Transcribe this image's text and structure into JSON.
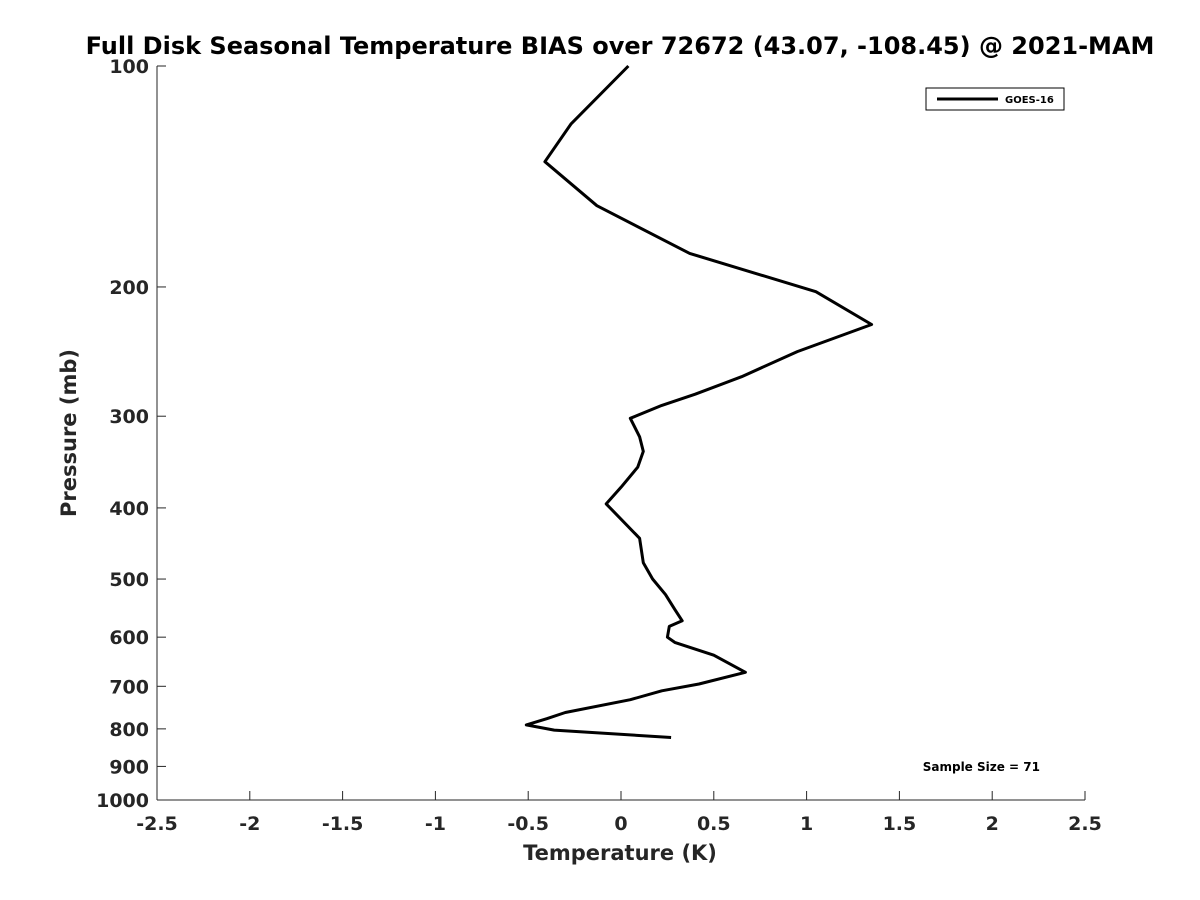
{
  "chart_data": {
    "type": "line",
    "title": "Full Disk Seasonal Temperature BIAS over 72672 (43.07, -108.45) @ 2021-MAM",
    "xlabel": "Temperature (K)",
    "ylabel": "Pressure (mb)",
    "xlim": [
      -2.5,
      2.5
    ],
    "ylim": [
      100,
      1000
    ],
    "yscale": "log",
    "yreversed": true,
    "grid": false,
    "legend_placement": "top-right",
    "xticks": [
      -2.5,
      -2,
      -1.5,
      -1,
      -0.5,
      0,
      0.5,
      1,
      1.5,
      2,
      2.5
    ],
    "xtick_labels": [
      "-2.5",
      "-2",
      "-1.5",
      "-1",
      "-0.5",
      "0",
      "0.5",
      "1",
      "1.5",
      "2",
      "2.5"
    ],
    "yticks": [
      100,
      200,
      300,
      400,
      500,
      600,
      700,
      800,
      900,
      1000
    ],
    "ytick_labels": [
      "100",
      "200",
      "300",
      "400",
      "500",
      "600",
      "700",
      "800",
      "900",
      "1000"
    ],
    "series": [
      {
        "name": "GOES-16",
        "color": "#000000",
        "x": [
          0.04,
          -0.27,
          -0.41,
          -0.13,
          0.37,
          1.05,
          1.35,
          0.95,
          0.65,
          0.4,
          0.22,
          0.05,
          0.1,
          0.12,
          0.09,
          0.0,
          -0.08,
          0.1,
          0.12,
          0.17,
          0.24,
          0.29,
          0.33,
          0.26,
          0.25,
          0.29,
          0.5,
          0.67,
          0.42,
          0.22,
          0.05,
          -0.3,
          -0.4,
          -0.51,
          -0.36,
          0.27
        ],
        "y": [
          100,
          120,
          135,
          155,
          180,
          203,
          225,
          245,
          265,
          280,
          290,
          302,
          320,
          335,
          352,
          375,
          395,
          440,
          475,
          500,
          525,
          550,
          570,
          580,
          600,
          610,
          635,
          670,
          695,
          710,
          730,
          760,
          775,
          790,
          803,
          822
        ]
      }
    ],
    "annotations": [
      "Sample Size = 71"
    ]
  }
}
